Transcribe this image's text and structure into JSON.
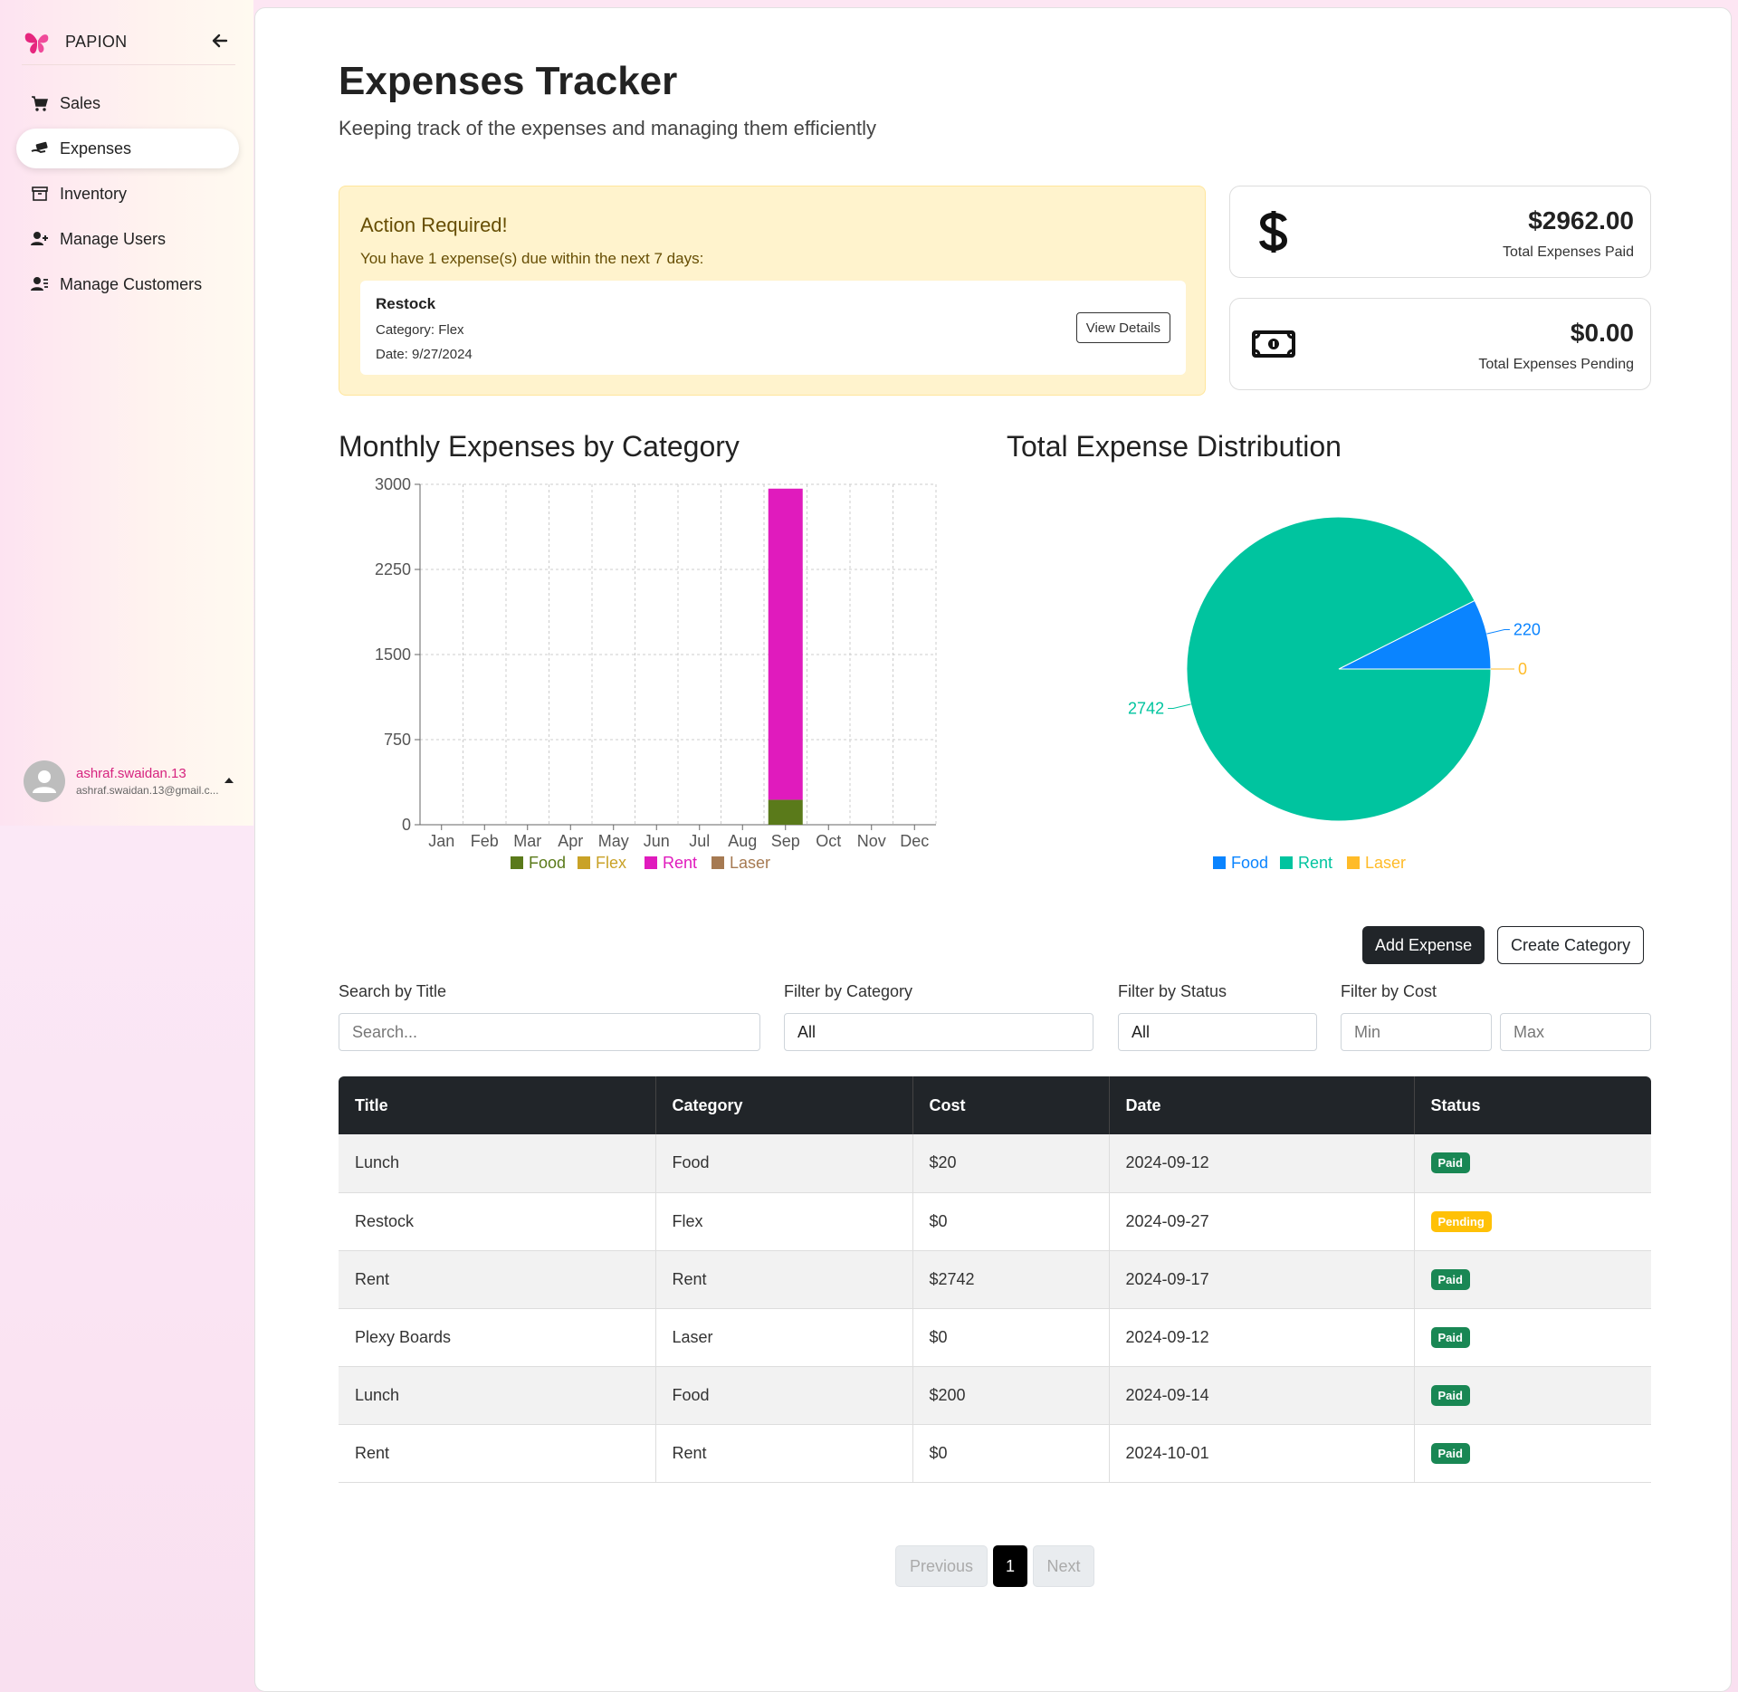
{
  "sidebar": {
    "brand": "PAPION",
    "items": [
      {
        "label": "Sales",
        "icon": "cart-icon"
      },
      {
        "label": "Expenses",
        "icon": "money-hand-icon",
        "active": true
      },
      {
        "label": "Inventory",
        "icon": "archive-icon"
      },
      {
        "label": "Manage Users",
        "icon": "user-plus-icon"
      },
      {
        "label": "Manage Customers",
        "icon": "user-list-icon"
      }
    ],
    "user": {
      "name": "ashraf.swaidan.13",
      "email": "ashraf.swaidan.13@gmail.c..."
    }
  },
  "header": {
    "title": "Expenses Tracker",
    "subtitle": "Keeping track of the expenses and managing them efficiently"
  },
  "alert": {
    "title": "Action Required!",
    "text": "You have 1 expense(s) due within the next 7 days:",
    "item": {
      "title": "Restock",
      "category": "Category: Flex",
      "date": "Date: 9/27/2024",
      "button": "View Details"
    }
  },
  "stats": [
    {
      "value": "$2962.00",
      "label": "Total Expenses Paid",
      "icon": "dollar-icon"
    },
    {
      "value": "$0.00",
      "label": "Total Expenses Pending",
      "icon": "money-bill-icon"
    }
  ],
  "charts": {
    "bar_title": "Monthly Expenses by Category",
    "pie_title": "Total Expense Distribution"
  },
  "chart_data": [
    {
      "type": "bar",
      "stacked": true,
      "title": "Monthly Expenses by Category",
      "categories": [
        "Jan",
        "Feb",
        "Mar",
        "Apr",
        "May",
        "Jun",
        "Jul",
        "Aug",
        "Sep",
        "Oct",
        "Nov",
        "Dec"
      ],
      "yticks": [
        0,
        750,
        1500,
        2250,
        3000
      ],
      "ylim": [
        0,
        3000
      ],
      "grid": true,
      "legend_position": "bottom",
      "series": [
        {
          "name": "Food",
          "color": "#5a7a1a",
          "values": [
            0,
            0,
            0,
            0,
            0,
            0,
            0,
            0,
            220,
            0,
            0,
            0
          ]
        },
        {
          "name": "Flex",
          "color": "#c9a227",
          "values": [
            0,
            0,
            0,
            0,
            0,
            0,
            0,
            0,
            0,
            0,
            0,
            0
          ]
        },
        {
          "name": "Rent",
          "color": "#e01bbd",
          "values": [
            0,
            0,
            0,
            0,
            0,
            0,
            0,
            0,
            2742,
            0,
            0,
            0
          ]
        },
        {
          "name": "Laser",
          "color": "#a67a52",
          "values": [
            0,
            0,
            0,
            0,
            0,
            0,
            0,
            0,
            0,
            0,
            0,
            0
          ]
        }
      ]
    },
    {
      "type": "pie",
      "title": "Total Expense Distribution",
      "legend_position": "bottom",
      "series": [
        {
          "name": "Food",
          "color": "#0a84ff",
          "value": 220
        },
        {
          "name": "Rent",
          "color": "#00c49f",
          "value": 2742
        },
        {
          "name": "Laser",
          "color": "#ffbb28",
          "value": 0
        }
      ]
    }
  ],
  "actions": {
    "add": "Add Expense",
    "create": "Create Category"
  },
  "filters": {
    "search_label": "Search by Title",
    "search_placeholder": "Search...",
    "category_label": "Filter by Category",
    "category_value": "All",
    "status_label": "Filter by Status",
    "status_value": "All",
    "cost_label": "Filter by Cost",
    "min_placeholder": "Min",
    "max_placeholder": "Max"
  },
  "table": {
    "headers": [
      "Title",
      "Category",
      "Cost",
      "Date",
      "Status"
    ],
    "rows": [
      [
        "Lunch",
        "Food",
        "$20",
        "2024-09-12",
        "Paid"
      ],
      [
        "Restock",
        "Flex",
        "$0",
        "2024-09-27",
        "Pending"
      ],
      [
        "Rent",
        "Rent",
        "$2742",
        "2024-09-17",
        "Paid"
      ],
      [
        "Plexy Boards",
        "Laser",
        "$0",
        "2024-09-12",
        "Paid"
      ],
      [
        "Lunch",
        "Food",
        "$200",
        "2024-09-14",
        "Paid"
      ],
      [
        "Rent",
        "Rent",
        "$0",
        "2024-10-01",
        "Paid"
      ]
    ]
  },
  "pagination": {
    "previous": "Previous",
    "current": "1",
    "next": "Next"
  }
}
